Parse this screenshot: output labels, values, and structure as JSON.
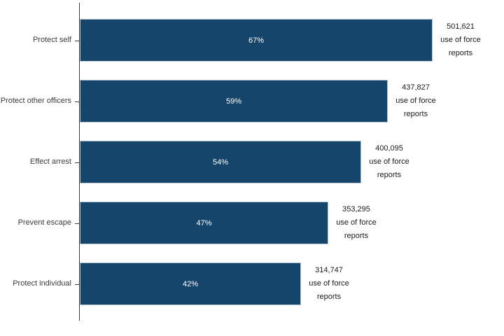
{
  "chart_data": {
    "type": "bar",
    "orientation": "horizontal",
    "title": "",
    "xlabel": "",
    "ylabel": "",
    "grid": false,
    "legend": false,
    "xlim_reports": [
      0,
      560000
    ],
    "categories": [
      "Protect self",
      "Protect other officers",
      "Effect arrest",
      "Prevent escape",
      "Protect individual"
    ],
    "series": [
      {
        "name": "Percent of use of force reports",
        "unit": "%",
        "values": [
          67,
          59,
          54,
          47,
          42
        ]
      },
      {
        "name": "Use of force reports",
        "unit": "reports",
        "values": [
          501621,
          437827,
          400095,
          353295,
          314747
        ]
      }
    ],
    "items": [
      {
        "category": "Protect self",
        "percent": 67,
        "percent_label": "67%",
        "reports": 501621,
        "reports_label": "501,621",
        "annotation_lines": [
          "501,621",
          "use of force",
          "reports"
        ]
      },
      {
        "category": "Protect other officers",
        "percent": 59,
        "percent_label": "59%",
        "reports": 437827,
        "reports_label": "437,827",
        "annotation_lines": [
          "437,827",
          "use of force",
          "reports"
        ]
      },
      {
        "category": "Effect arrest",
        "percent": 54,
        "percent_label": "54%",
        "reports": 400095,
        "reports_label": "400,095",
        "annotation_lines": [
          "400,095",
          "use of force",
          "reports"
        ]
      },
      {
        "category": "Prevent escape",
        "percent": 47,
        "percent_label": "47%",
        "reports": 353295,
        "reports_label": "353,295",
        "annotation_lines": [
          "353,295",
          "use of force",
          "reports"
        ]
      },
      {
        "category": "Protect individual",
        "percent": 42,
        "percent_label": "42%",
        "reports": 314747,
        "reports_label": "314,747",
        "annotation_lines": [
          "314,747",
          "use of force",
          "reports"
        ]
      }
    ],
    "colors": {
      "background": "#ffffff",
      "bar_fill": "#15456b",
      "bar_stroke": "#b0c3d1",
      "bar_label_text": "#ffffff",
      "category_text": "#3d3d3d",
      "annotation_text": "#1a1a1a",
      "axis_line": "#3b3b3b"
    }
  }
}
